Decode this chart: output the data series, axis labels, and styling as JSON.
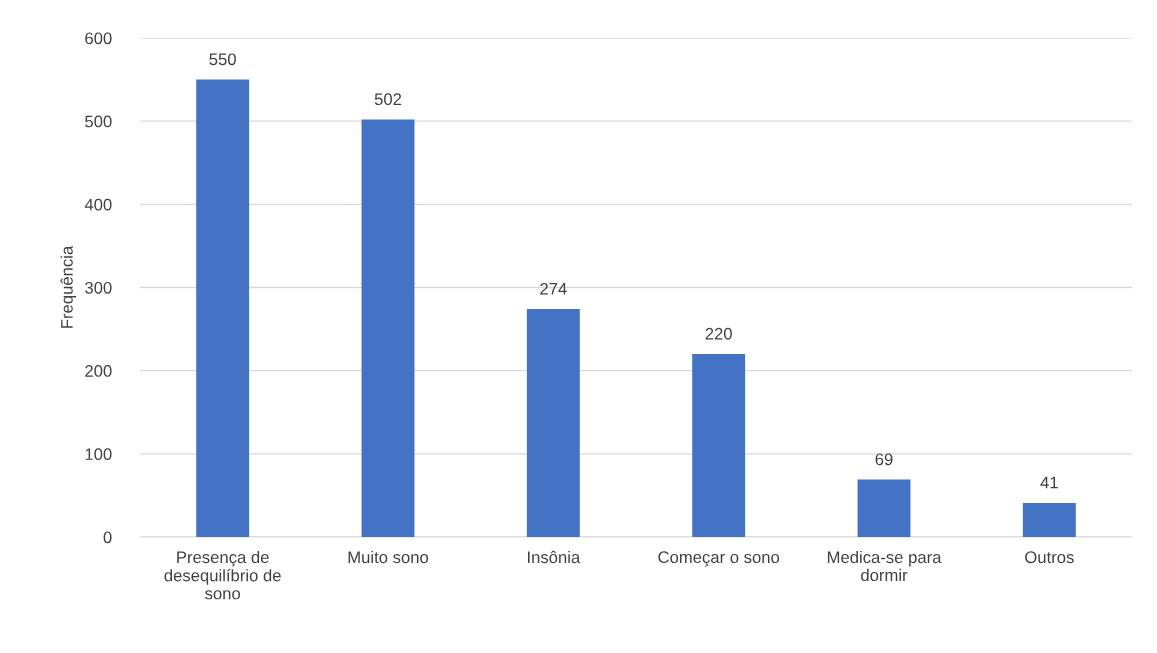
{
  "chart_data": {
    "type": "bar",
    "ylabel": "Frequência",
    "categories": [
      "Presença de desequilíbrio de sono",
      "Muito sono",
      "Insônia",
      "Começar o sono",
      "Medica-se para dormir",
      "Outros"
    ],
    "values": [
      550,
      502,
      274,
      220,
      69,
      41
    ],
    "color": "#4472c4",
    "ylim": [
      0,
      600
    ],
    "yticks": [
      0,
      100,
      200,
      300,
      400,
      500,
      600
    ],
    "grid": "y",
    "data_labels": true,
    "legend": false
  }
}
